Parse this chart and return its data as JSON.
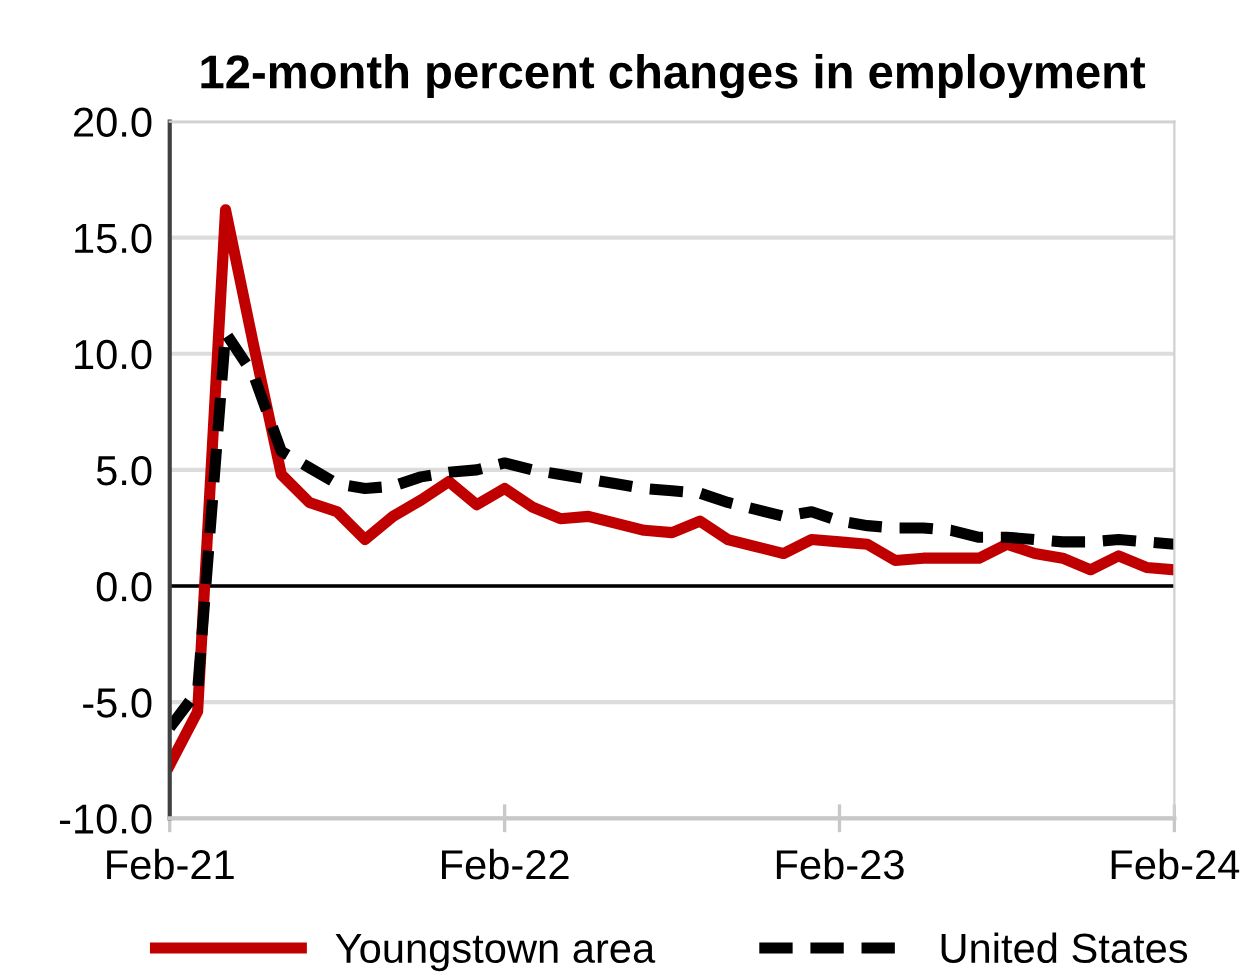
{
  "chart_data": {
    "type": "line",
    "title": "12-month percent changes in employment",
    "x": [
      "2021-02",
      "2021-03",
      "2021-04",
      "2021-05",
      "2021-06",
      "2021-07",
      "2021-08",
      "2021-09",
      "2021-10",
      "2021-11",
      "2021-12",
      "2022-01",
      "2022-02",
      "2022-03",
      "2022-04",
      "2022-05",
      "2022-06",
      "2022-07",
      "2022-08",
      "2022-09",
      "2022-10",
      "2022-11",
      "2022-12",
      "2023-01",
      "2023-02",
      "2023-03",
      "2023-04",
      "2023-05",
      "2023-06",
      "2023-07",
      "2023-08",
      "2023-09",
      "2023-10",
      "2023-11",
      "2023-12",
      "2024-01",
      "2024-02"
    ],
    "series": [
      {
        "name": "Youngstown area",
        "color": "#c00000",
        "line_style": "solid",
        "values": [
          -7.7,
          -5.4,
          16.2,
          10.4,
          4.8,
          3.6,
          3.2,
          2.0,
          3.0,
          3.7,
          4.5,
          3.5,
          4.2,
          3.4,
          2.9,
          3.0,
          2.7,
          2.4,
          2.3,
          2.8,
          2.0,
          1.7,
          1.4,
          2.0,
          1.9,
          1.8,
          1.1,
          1.2,
          1.2,
          1.2,
          1.8,
          1.4,
          1.2,
          0.7,
          1.3,
          0.8,
          0.7
        ]
      },
      {
        "name": "United States",
        "color": "#000000",
        "line_style": "dashed",
        "values": [
          -6.1,
          -4.5,
          10.9,
          9.1,
          5.8,
          5.1,
          4.4,
          4.2,
          4.3,
          4.7,
          4.9,
          5.0,
          5.3,
          5.0,
          4.8,
          4.6,
          4.4,
          4.2,
          4.1,
          4.0,
          3.6,
          3.3,
          3.0,
          3.2,
          2.8,
          2.6,
          2.5,
          2.5,
          2.4,
          2.1,
          2.1,
          2.0,
          1.9,
          1.9,
          2.0,
          1.9,
          1.8
        ]
      }
    ],
    "xlim": [
      "2021-02",
      "2024-02"
    ],
    "xticks": [
      {
        "value": "2021-02",
        "label": "Feb-21"
      },
      {
        "value": "2022-02",
        "label": "Feb-22"
      },
      {
        "value": "2023-02",
        "label": "Feb-23"
      },
      {
        "value": "2024-02",
        "label": "Feb-24"
      }
    ],
    "ylim": [
      -10,
      20
    ],
    "yticks": [
      {
        "value": -10,
        "label": "-10.0"
      },
      {
        "value": -5,
        "label": "-5.0"
      },
      {
        "value": 0,
        "label": "0.0"
      },
      {
        "value": 5,
        "label": "5.0"
      },
      {
        "value": 10,
        "label": "10.0"
      },
      {
        "value": 15,
        "label": "15.0"
      },
      {
        "value": 20,
        "label": "20.0"
      }
    ],
    "ref_lines": [
      {
        "axis": "y",
        "value": 0,
        "color": "#000000",
        "line_style": "solid"
      }
    ],
    "grid": "y",
    "legend": "bottom"
  }
}
